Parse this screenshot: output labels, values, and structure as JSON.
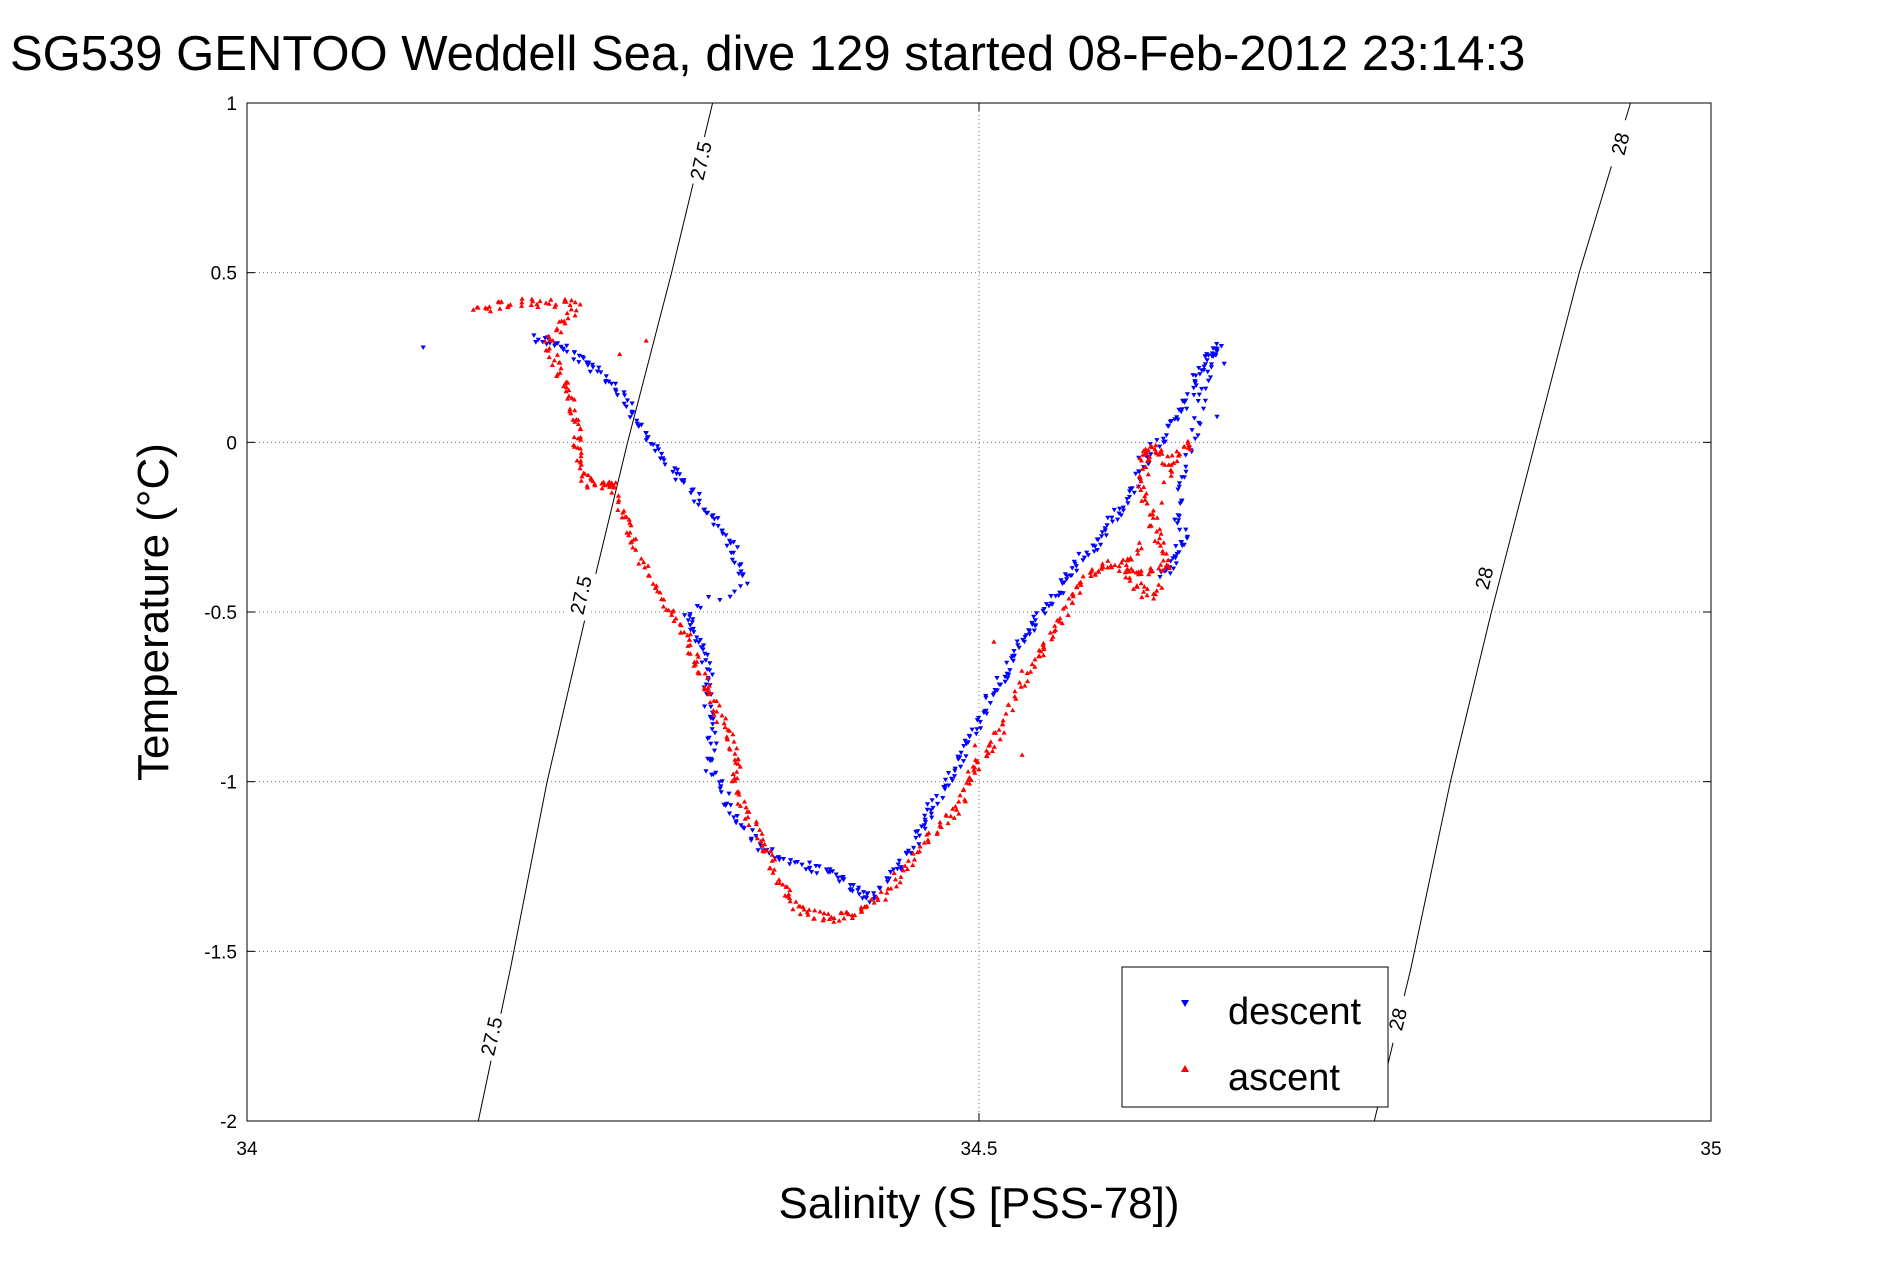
{
  "chart_data": {
    "type": "scatter",
    "title": "SG539 GENTOO Weddell Sea, dive 129 started 08-Feb-2012 23:14:3",
    "xlabel": "Salinity (S [PSS-78])",
    "ylabel": "Temperature (°C)",
    "xlim": [
      34,
      35
    ],
    "ylim": [
      -2,
      1
    ],
    "x_ticks": [
      34,
      34.5,
      35
    ],
    "x_tick_labels": [
      "34",
      "34.5",
      "35"
    ],
    "y_ticks": [
      1,
      0.5,
      0,
      -0.5,
      -1,
      -1.5,
      -2
    ],
    "y_tick_labels": [
      "1",
      "0.5",
      "0",
      "-0.5",
      "-1",
      "-1.5",
      "-2"
    ],
    "grid": true,
    "legend_position": "bottom-right",
    "series": [
      {
        "name": "descent",
        "color": "#0000ff",
        "marker": "triangle-down",
        "path": [
          [
            34.195,
            0.31
          ],
          [
            34.205,
            0.3
          ],
          [
            34.215,
            0.28
          ],
          [
            34.225,
            0.25
          ],
          [
            34.235,
            0.22
          ],
          [
            34.245,
            0.19
          ],
          [
            34.255,
            0.15
          ],
          [
            34.262,
            0.1
          ],
          [
            34.27,
            0.05
          ],
          [
            34.275,
            0.0
          ],
          [
            34.285,
            -0.05
          ],
          [
            34.295,
            -0.1
          ],
          [
            34.305,
            -0.15
          ],
          [
            34.315,
            -0.2
          ],
          [
            34.322,
            -0.25
          ],
          [
            34.33,
            -0.3
          ],
          [
            34.335,
            -0.35
          ],
          [
            34.34,
            -0.42
          ],
          [
            34.3,
            -0.5
          ],
          [
            34.305,
            -0.55
          ],
          [
            34.31,
            -0.6
          ],
          [
            34.315,
            -0.65
          ],
          [
            34.315,
            -0.72
          ],
          [
            34.315,
            -0.8
          ],
          [
            34.318,
            -0.88
          ],
          [
            34.315,
            -0.95
          ],
          [
            34.325,
            -1.02
          ],
          [
            34.33,
            -1.08
          ],
          [
            34.34,
            -1.14
          ],
          [
            34.35,
            -1.19
          ],
          [
            34.362,
            -1.22
          ],
          [
            34.375,
            -1.24
          ],
          [
            34.39,
            -1.26
          ],
          [
            34.4,
            -1.27
          ],
          [
            34.408,
            -1.3
          ],
          [
            34.418,
            -1.33
          ],
          [
            34.425,
            -1.35
          ],
          [
            34.435,
            -1.3
          ],
          [
            34.445,
            -1.25
          ],
          [
            34.452,
            -1.2
          ],
          [
            34.46,
            -1.15
          ],
          [
            34.465,
            -1.1
          ],
          [
            34.47,
            -1.05
          ],
          [
            34.478,
            -1.0
          ],
          [
            34.485,
            -0.95
          ],
          [
            34.49,
            -0.9
          ],
          [
            34.497,
            -0.85
          ],
          [
            34.502,
            -0.8
          ],
          [
            34.508,
            -0.75
          ],
          [
            34.515,
            -0.7
          ],
          [
            34.522,
            -0.65
          ],
          [
            34.528,
            -0.6
          ],
          [
            34.535,
            -0.56
          ],
          [
            34.54,
            -0.52
          ],
          [
            34.548,
            -0.48
          ],
          [
            34.555,
            -0.44
          ],
          [
            34.562,
            -0.4
          ],
          [
            34.568,
            -0.35
          ],
          [
            34.578,
            -0.32
          ],
          [
            34.585,
            -0.27
          ],
          [
            34.592,
            -0.22
          ],
          [
            34.6,
            -0.18
          ],
          [
            34.608,
            -0.12
          ],
          [
            34.615,
            -0.06
          ],
          [
            34.622,
            0.0
          ],
          [
            34.63,
            0.05
          ],
          [
            34.638,
            0.1
          ],
          [
            34.645,
            0.15
          ],
          [
            34.65,
            0.2
          ],
          [
            34.655,
            0.24
          ],
          [
            34.66,
            0.27
          ],
          [
            34.663,
            0.28
          ],
          [
            34.655,
            0.18
          ],
          [
            34.65,
            0.08
          ],
          [
            34.645,
            -0.02
          ],
          [
            34.64,
            -0.12
          ],
          [
            34.635,
            -0.22
          ],
          [
            34.64,
            -0.28
          ],
          [
            34.635,
            -0.33
          ],
          [
            34.63,
            -0.37
          ],
          [
            34.625,
            -0.39
          ]
        ],
        "extra_points": [
          [
            34.12,
            0.29
          ],
          [
            34.66,
            0.07
          ],
          [
            34.665,
            0.24
          ],
          [
            34.608,
            -0.05
          ],
          [
            34.59,
            -0.25
          ]
        ]
      },
      {
        "name": "ascent",
        "color": "#ff0000",
        "marker": "triangle-up",
        "path": [
          [
            34.155,
            0.39
          ],
          [
            34.17,
            0.4
          ],
          [
            34.185,
            0.41
          ],
          [
            34.2,
            0.41
          ],
          [
            34.215,
            0.41
          ],
          [
            34.225,
            0.4
          ],
          [
            34.215,
            0.35
          ],
          [
            34.205,
            0.3
          ],
          [
            34.21,
            0.25
          ],
          [
            34.215,
            0.2
          ],
          [
            34.22,
            0.15
          ],
          [
            34.222,
            0.1
          ],
          [
            34.225,
            0.05
          ],
          [
            34.225,
            0.0
          ],
          [
            34.228,
            -0.05
          ],
          [
            34.23,
            -0.1
          ],
          [
            34.235,
            -0.13
          ],
          [
            34.245,
            -0.13
          ],
          [
            34.25,
            -0.12
          ],
          [
            34.255,
            -0.2
          ],
          [
            34.26,
            -0.25
          ],
          [
            34.265,
            -0.3
          ],
          [
            34.272,
            -0.38
          ],
          [
            34.28,
            -0.44
          ],
          [
            34.29,
            -0.5
          ],
          [
            34.297,
            -0.55
          ],
          [
            34.302,
            -0.6
          ],
          [
            34.307,
            -0.65
          ],
          [
            34.312,
            -0.7
          ],
          [
            34.318,
            -0.75
          ],
          [
            34.322,
            -0.8
          ],
          [
            34.328,
            -0.86
          ],
          [
            34.332,
            -0.9
          ],
          [
            34.335,
            -0.95
          ],
          [
            34.332,
            -1.0
          ],
          [
            34.338,
            -1.06
          ],
          [
            34.345,
            -1.12
          ],
          [
            34.352,
            -1.18
          ],
          [
            34.358,
            -1.22
          ],
          [
            34.362,
            -1.28
          ],
          [
            34.368,
            -1.33
          ],
          [
            34.375,
            -1.37
          ],
          [
            34.385,
            -1.39
          ],
          [
            34.395,
            -1.4
          ],
          [
            34.405,
            -1.4
          ],
          [
            34.415,
            -1.39
          ],
          [
            34.425,
            -1.37
          ],
          [
            34.435,
            -1.33
          ],
          [
            34.445,
            -1.28
          ],
          [
            34.455,
            -1.22
          ],
          [
            34.465,
            -1.17
          ],
          [
            34.475,
            -1.12
          ],
          [
            34.485,
            -1.08
          ],
          [
            34.49,
            -1.03
          ],
          [
            34.495,
            -0.98
          ],
          [
            34.5,
            -0.94
          ],
          [
            34.508,
            -0.9
          ],
          [
            34.515,
            -0.85
          ],
          [
            34.522,
            -0.78
          ],
          [
            34.53,
            -0.7
          ],
          [
            34.538,
            -0.64
          ],
          [
            34.545,
            -0.6
          ],
          [
            34.552,
            -0.56
          ],
          [
            34.56,
            -0.5
          ],
          [
            34.565,
            -0.44
          ],
          [
            34.572,
            -0.4
          ],
          [
            34.58,
            -0.37
          ],
          [
            34.59,
            -0.36
          ],
          [
            34.6,
            -0.37
          ],
          [
            34.61,
            -0.38
          ],
          [
            34.62,
            -0.37
          ],
          [
            34.63,
            -0.36
          ],
          [
            34.625,
            -0.3
          ],
          [
            34.62,
            -0.25
          ],
          [
            34.615,
            -0.18
          ],
          [
            34.61,
            -0.12
          ],
          [
            34.615,
            -0.06
          ],
          [
            34.612,
            -0.03
          ],
          [
            34.618,
            -0.01
          ],
          [
            34.625,
            -0.04
          ],
          [
            34.63,
            -0.08
          ],
          [
            34.638,
            -0.03
          ],
          [
            34.643,
            0.0
          ],
          [
            34.61,
            -0.3
          ],
          [
            34.6,
            -0.35
          ],
          [
            34.605,
            -0.42
          ],
          [
            34.615,
            -0.45
          ],
          [
            34.625,
            -0.43
          ]
        ],
        "extra_points": [
          [
            34.255,
            0.27
          ],
          [
            34.27,
            0.3
          ],
          [
            34.528,
            -0.93
          ],
          [
            34.495,
            -0.88
          ],
          [
            34.51,
            -0.58
          ]
        ]
      }
    ],
    "contours": [
      {
        "label": "27.5",
        "points": [
          [
            34.158,
            -2.0
          ],
          [
            34.18,
            -1.55
          ],
          [
            34.205,
            -1.0
          ],
          [
            34.232,
            -0.5
          ],
          [
            34.26,
            0.0
          ],
          [
            34.29,
            0.5
          ],
          [
            34.318,
            1.0
          ]
        ],
        "label_positions": [
          [
            34.167,
            -1.75
          ],
          [
            34.228,
            -0.45
          ],
          [
            34.31,
            0.83
          ]
        ]
      },
      {
        "label": "28",
        "points": [
          [
            34.77,
            -2.0
          ],
          [
            34.795,
            -1.55
          ],
          [
            34.822,
            -1.0
          ],
          [
            34.85,
            -0.5
          ],
          [
            34.88,
            0.0
          ],
          [
            34.91,
            0.5
          ],
          [
            34.945,
            1.0
          ]
        ],
        "label_positions": [
          [
            34.786,
            -1.7
          ],
          [
            34.845,
            -0.4
          ],
          [
            34.938,
            0.88
          ]
        ]
      }
    ]
  }
}
